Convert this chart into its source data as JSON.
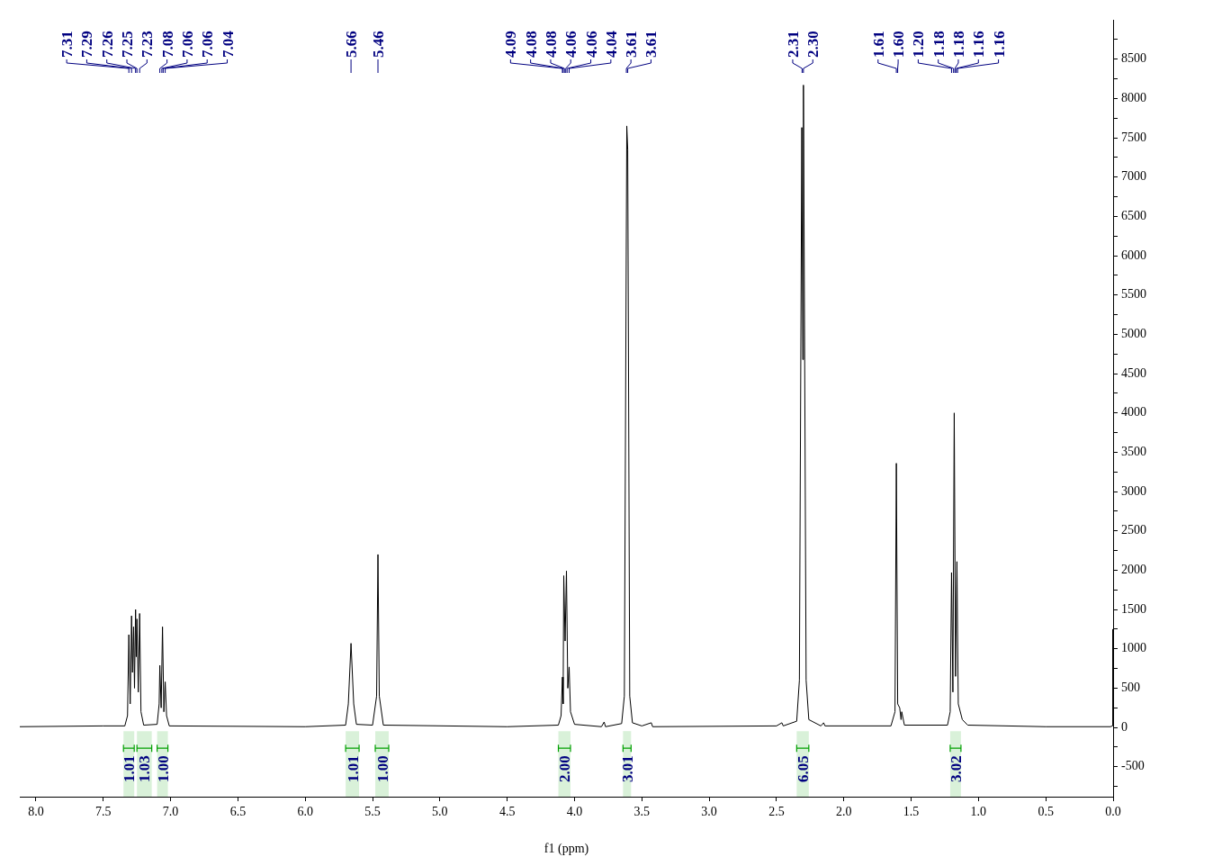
{
  "chart_data": {
    "type": "line",
    "xlabel": "f1 (ppm)",
    "legend": false,
    "marker": "none",
    "tick_labels": "xy",
    "xlim": [
      8.12,
      0
    ],
    "ylim": [
      -880,
      9000
    ],
    "xticks": [
      {
        "value": 8,
        "label": "8.0"
      },
      7.5,
      {
        "value": 7,
        "label": "7.0"
      },
      6.5,
      {
        "value": 6,
        "label": "6.0"
      },
      5.5,
      {
        "value": 5,
        "label": "5.0"
      },
      4.5,
      {
        "value": 4,
        "label": "4.0"
      },
      3.5,
      {
        "value": 3,
        "label": "3.0"
      },
      2.5,
      {
        "value": 2,
        "label": "2.0"
      },
      1.5,
      {
        "value": 1,
        "label": "1.0"
      },
      0.5,
      {
        "value": 0,
        "label": "0.0"
      }
    ],
    "yticks": [
      {
        "value": -750,
        "label": null
      },
      -500,
      {
        "value": -250,
        "label": null
      },
      0,
      {
        "value": 250,
        "label": null
      },
      500,
      {
        "value": 750,
        "label": null
      },
      1000,
      {
        "value": 1250,
        "label": null
      },
      1500,
      {
        "value": 1750,
        "label": null
      },
      2000,
      {
        "value": 2250,
        "label": null
      },
      2500,
      {
        "value": 2750,
        "label": null
      },
      3000,
      {
        "value": 3250,
        "label": null
      },
      3500,
      {
        "value": 3750,
        "label": null
      },
      4000,
      {
        "value": 4250,
        "label": null
      },
      4500,
      {
        "value": 4750,
        "label": null
      },
      5000,
      {
        "value": 5250,
        "label": null
      },
      5500,
      {
        "value": 5750,
        "label": null
      },
      6000,
      {
        "value": 6250,
        "label": null
      },
      6500,
      {
        "value": 6750,
        "label": null
      },
      7000,
      {
        "value": 7250,
        "label": null
      },
      7500,
      {
        "value": 7750,
        "label": null
      },
      8000,
      {
        "value": 8250,
        "label": null
      },
      8500,
      {
        "value": 8750,
        "label": null
      }
    ],
    "series": [
      {
        "color": "#000000",
        "x": [
          8.12,
          7.5,
          7.34,
          7.32,
          7.31,
          7.3,
          7.29,
          7.283,
          7.275,
          7.268,
          7.26,
          7.255,
          7.25,
          7.24,
          7.23,
          7.22,
          7.2,
          7.1,
          7.085,
          7.08,
          7.07,
          7.06,
          7.05,
          7.04,
          7.03,
          7.01,
          6.0,
          5.7,
          5.68,
          5.66,
          5.64,
          5.62,
          5.5,
          5.47,
          5.46,
          5.45,
          5.42,
          4.5,
          4.12,
          4.1,
          4.09,
          4.085,
          4.08,
          4.07,
          4.06,
          4.05,
          4.04,
          4.03,
          4.0,
          3.8,
          3.78,
          3.77,
          3.65,
          3.63,
          3.612,
          3.605,
          3.59,
          3.57,
          3.5,
          3.43,
          3.42,
          2.5,
          2.46,
          2.45,
          2.35,
          2.33,
          2.312,
          2.305,
          2.3,
          2.28,
          2.26,
          2.17,
          2.15,
          2.14,
          1.65,
          1.62,
          1.61,
          1.6,
          1.585,
          1.575,
          1.57,
          1.55,
          1.23,
          1.21,
          1.2,
          1.19,
          1.18,
          1.17,
          1.16,
          1.15,
          1.12,
          1.08,
          0.5,
          0.02,
          0.005,
          0.003,
          0.0
        ],
        "values": [
          10,
          20,
          20,
          150,
          1180,
          300,
          1420,
          700,
          1280,
          500,
          1500,
          900,
          1380,
          450,
          1450,
          200,
          30,
          40,
          300,
          790,
          250,
          1280,
          200,
          580,
          150,
          20,
          10,
          30,
          300,
          1070,
          300,
          40,
          30,
          400,
          2200,
          400,
          30,
          10,
          30,
          150,
          640,
          300,
          1930,
          1100,
          1990,
          500,
          770,
          200,
          40,
          10,
          70,
          10,
          50,
          400,
          7650,
          7350,
          400,
          60,
          20,
          60,
          10,
          20,
          60,
          20,
          80,
          600,
          7630,
          4680,
          8170,
          600,
          100,
          20,
          60,
          20,
          20,
          200,
          3360,
          300,
          250,
          100,
          200,
          30,
          30,
          200,
          1970,
          450,
          4000,
          650,
          2110,
          300,
          100,
          30,
          10,
          10,
          20,
          1250,
          600
        ]
      }
    ],
    "annotations": [
      {
        "text": "7.31",
        "x": 7.31
      },
      {
        "text": "7.29",
        "x": 7.29
      },
      {
        "text": "7.26",
        "x": 7.26
      },
      {
        "text": "7.25",
        "x": 7.25
      },
      {
        "text": "7.23",
        "x": 7.23
      },
      {
        "text": "7.08",
        "x": 7.08
      },
      {
        "text": "7.06",
        "x": 7.065
      },
      {
        "text": "7.06",
        "x": 7.055
      },
      {
        "text": "7.04",
        "x": 7.04
      },
      {
        "text": "5.66",
        "x": 5.66
      },
      {
        "text": "5.46",
        "x": 5.46
      },
      {
        "text": "4.09",
        "x": 4.09
      },
      {
        "text": "4.08",
        "x": 4.085
      },
      {
        "text": "4.08",
        "x": 4.075
      },
      {
        "text": "4.06",
        "x": 4.065
      },
      {
        "text": "4.06",
        "x": 4.055
      },
      {
        "text": "4.04",
        "x": 4.04
      },
      {
        "text": "3.61",
        "x": 3.615
      },
      {
        "text": "3.61",
        "x": 3.605
      },
      {
        "text": "2.31",
        "x": 2.31
      },
      {
        "text": "2.30",
        "x": 2.3
      },
      {
        "text": "1.61",
        "x": 1.61
      },
      {
        "text": "1.60",
        "x": 1.6
      },
      {
        "text": "1.20",
        "x": 1.2
      },
      {
        "text": "1.18",
        "x": 1.185
      },
      {
        "text": "1.18",
        "x": 1.175
      },
      {
        "text": "1.16",
        "x": 1.165
      },
      {
        "text": "1.16",
        "x": 1.155
      }
    ],
    "bands": [
      {
        "axis": "x",
        "from": 7.35,
        "to": 7.27,
        "label": "1.01",
        "color": "#00a000"
      },
      {
        "axis": "x",
        "from": 7.25,
        "to": 7.14,
        "label": "1.03",
        "color": "#00a000"
      },
      {
        "axis": "x",
        "from": 7.1,
        "to": 7.02,
        "label": "1.00",
        "color": "#00a000"
      },
      {
        "axis": "x",
        "from": 5.7,
        "to": 5.6,
        "label": "1.01",
        "color": "#00a000"
      },
      {
        "axis": "x",
        "from": 5.48,
        "to": 5.38,
        "label": "1.00",
        "color": "#00a000"
      },
      {
        "axis": "x",
        "from": 4.12,
        "to": 4.03,
        "label": "2.00",
        "color": "#00a000"
      },
      {
        "axis": "x",
        "from": 3.64,
        "to": 3.58,
        "label": "3.01",
        "color": "#00a000"
      },
      {
        "axis": "x",
        "from": 2.35,
        "to": 2.26,
        "label": "6.05",
        "color": "#00a000"
      },
      {
        "axis": "x",
        "from": 1.21,
        "to": 1.13,
        "label": "3.02",
        "color": "#00a000"
      }
    ]
  }
}
